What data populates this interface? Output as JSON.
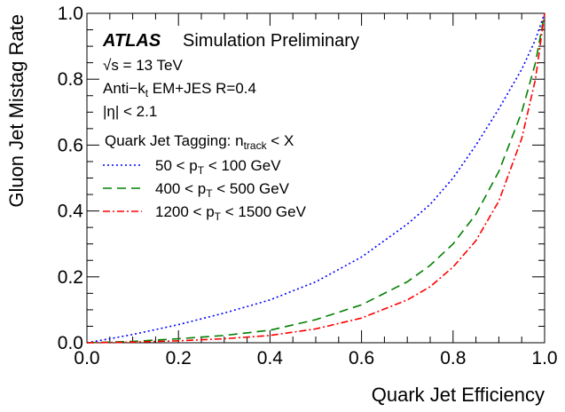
{
  "chart_data": {
    "type": "line",
    "xlabel": "Quark Jet Efficiency",
    "ylabel": "Gluon Jet Mistag Rate",
    "xlim": [
      0.0,
      1.0
    ],
    "ylim": [
      0.0,
      1.0
    ],
    "xticks": [
      "0.0",
      "0.2",
      "0.4",
      "0.6",
      "0.8",
      "1.0"
    ],
    "yticks": [
      "0.0",
      "0.2",
      "0.4",
      "0.6",
      "0.8",
      "1.0"
    ],
    "grid": false,
    "annotations": {
      "experiment": "ATLAS",
      "status": "Simulation Preliminary",
      "energy": "√s = 13 TeV",
      "algo_prefix": "Anti−k",
      "algo_sub": "t",
      "algo_suffix": " EM+JES R=0.4",
      "eta": "|η| < 2.1"
    },
    "legend": {
      "placement": "top-left",
      "header_prefix": "Quark Jet Tagging: n",
      "header_sub": "track",
      "header_suffix": " < X",
      "entries": [
        {
          "prefix": "50 < p",
          "sub": "T",
          "suffix": " < 100 GeV",
          "color": "#0000ff",
          "dash": "2,3"
        },
        {
          "prefix": "400 < p",
          "sub": "T",
          "suffix": " < 500 GeV",
          "color": "#008000",
          "dash": "10,6"
        },
        {
          "prefix": "1200 < p",
          "sub": "T",
          "suffix": " < 1500 GeV",
          "color": "#ff0000",
          "dash": "8,3,2,3"
        }
      ]
    },
    "series": [
      {
        "pt_range": "50-100 GeV",
        "color": "#0000ff",
        "x": [
          0.0,
          0.05,
          0.1,
          0.2,
          0.3,
          0.4,
          0.5,
          0.6,
          0.7,
          0.75,
          0.8,
          0.85,
          0.9,
          0.95,
          0.98,
          1.0
        ],
        "y": [
          0.0,
          0.012,
          0.025,
          0.055,
          0.09,
          0.13,
          0.185,
          0.26,
          0.36,
          0.42,
          0.5,
          0.6,
          0.71,
          0.83,
          0.92,
          1.0
        ]
      },
      {
        "pt_range": "400-500 GeV",
        "color": "#008000",
        "x": [
          0.0,
          0.1,
          0.2,
          0.3,
          0.4,
          0.5,
          0.6,
          0.7,
          0.75,
          0.8,
          0.85,
          0.9,
          0.95,
          0.98,
          1.0
        ],
        "y": [
          0.0,
          0.004,
          0.012,
          0.022,
          0.038,
          0.07,
          0.115,
          0.185,
          0.235,
          0.3,
          0.39,
          0.52,
          0.7,
          0.85,
          1.0
        ]
      },
      {
        "pt_range": "1200-1500 GeV",
        "color": "#ff0000",
        "x": [
          0.0,
          0.1,
          0.2,
          0.3,
          0.4,
          0.5,
          0.6,
          0.7,
          0.75,
          0.8,
          0.85,
          0.9,
          0.95,
          0.98,
          1.0
        ],
        "y": [
          0.0,
          0.002,
          0.006,
          0.012,
          0.022,
          0.042,
          0.075,
          0.13,
          0.17,
          0.23,
          0.31,
          0.43,
          0.62,
          0.8,
          1.0
        ]
      }
    ]
  }
}
